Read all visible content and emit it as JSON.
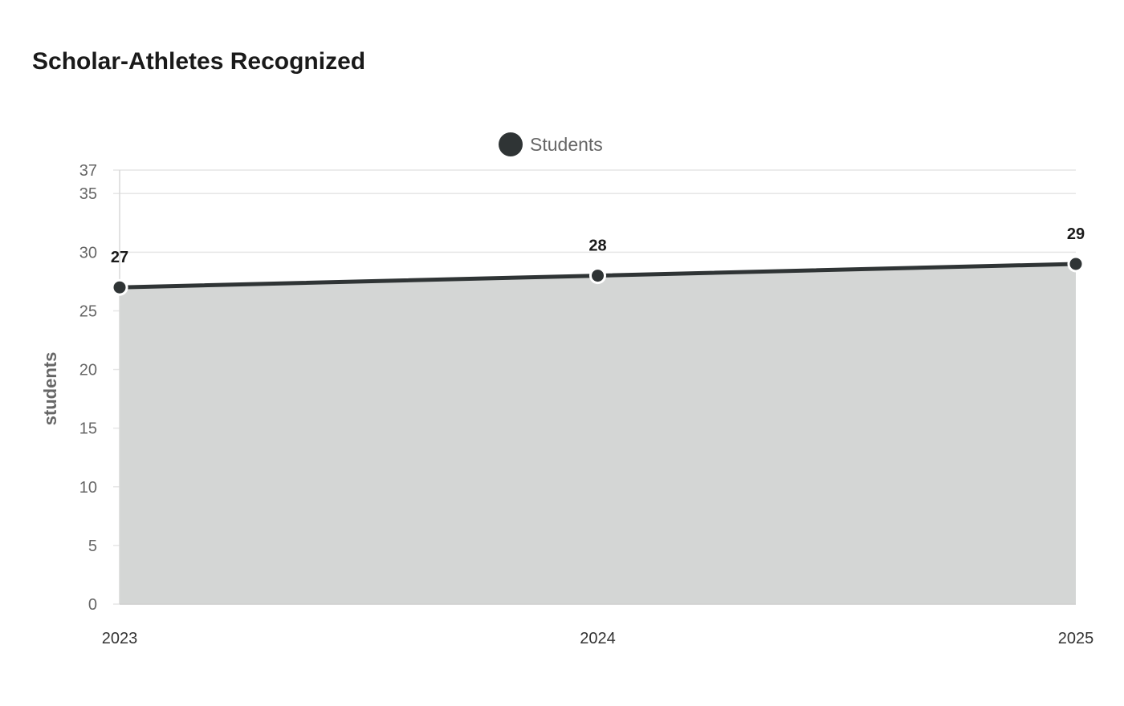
{
  "chart_data": {
    "type": "area",
    "title": "Scholar-Athletes Recognized",
    "categories": [
      "2023",
      "2024",
      "2025"
    ],
    "series": [
      {
        "name": "Students",
        "values": [
          27,
          28,
          29
        ]
      }
    ],
    "xlabel": "",
    "ylabel": "students",
    "ylim": [
      0,
      37
    ],
    "yticks": [
      0,
      5,
      10,
      15,
      20,
      25,
      30,
      35,
      37
    ],
    "grid": true,
    "legend_position": "top-center",
    "data_labels": true,
    "colors": {
      "line": "#2f3435",
      "fill": "#d4d6d5",
      "grid": "#e6e6e6",
      "point_stroke": "#ffffff"
    }
  }
}
